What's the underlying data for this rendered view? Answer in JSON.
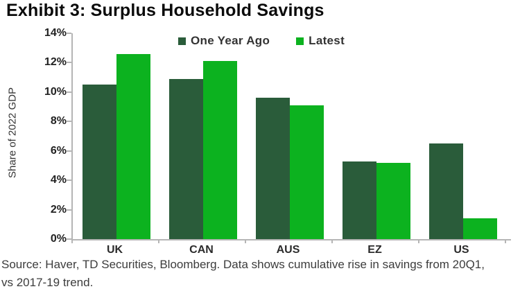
{
  "title": "Exhibit 3: Surplus Household Savings",
  "source": {
    "line1": "Source: Haver, TD Securities, Bloomberg. Data shows cumulative rise in savings from 20Q1,",
    "line2": "vs 2017-19 trend."
  },
  "legend": {
    "items": [
      {
        "label": "One Year Ago",
        "color": "#2A5C3A"
      },
      {
        "label": "Latest",
        "color": "#0CB21F"
      }
    ]
  },
  "chart_data": {
    "type": "bar",
    "title": "Exhibit 3: Surplus Household Savings",
    "categories": [
      "UK",
      "CAN",
      "AUS",
      "EZ",
      "US"
    ],
    "series": [
      {
        "name": "One Year Ago",
        "color": "#2A5C3A",
        "values": [
          10.5,
          10.9,
          9.6,
          5.3,
          6.5
        ]
      },
      {
        "name": "Latest",
        "color": "#0CB21F",
        "values": [
          12.6,
          12.1,
          9.1,
          5.2,
          1.4
        ]
      }
    ],
    "xlabel": "",
    "ylabel": "Share of 2022 GDP",
    "ylim": [
      0,
      14
    ],
    "ytick_values": [
      0,
      2,
      4,
      6,
      8,
      10,
      12,
      14
    ],
    "ytick_labels": [
      "0%",
      "2%",
      "4%",
      "6%",
      "8%",
      "10%",
      "12%",
      "14%"
    ],
    "grid": false,
    "legend_position": "top-center",
    "axis_color": "#b5b5b5"
  }
}
